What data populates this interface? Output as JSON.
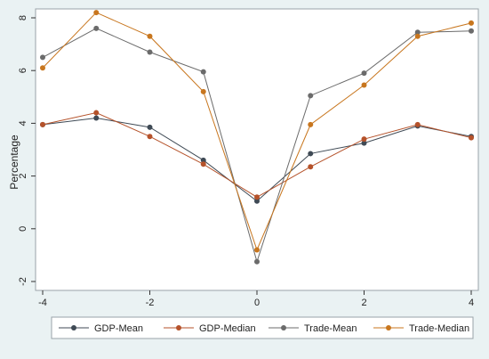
{
  "chart_data": {
    "type": "line",
    "title": "",
    "xlabel": "",
    "ylabel": "Percentage",
    "xlim": [
      -4,
      4
    ],
    "ylim": [
      -2,
      8
    ],
    "x_ticks": [
      -4,
      -2,
      0,
      2,
      4
    ],
    "y_ticks": [
      -2,
      0,
      2,
      4,
      6,
      8
    ],
    "grid": false,
    "legend_position": "bottom",
    "x": [
      -4,
      -3,
      -2,
      -1,
      0,
      1,
      2,
      3,
      4
    ],
    "series": [
      {
        "name": "GDP-Mean",
        "color": "#3f4a55",
        "values": [
          3.95,
          4.2,
          3.85,
          2.6,
          1.05,
          2.85,
          3.25,
          3.9,
          3.5
        ]
      },
      {
        "name": "GDP-Median",
        "color": "#b5522a",
        "values": [
          3.95,
          4.4,
          3.5,
          2.45,
          1.2,
          2.35,
          3.4,
          3.95,
          3.45
        ]
      },
      {
        "name": "Trade-Mean",
        "color": "#6b6b6b",
        "values": [
          6.5,
          7.6,
          6.7,
          5.95,
          -1.25,
          5.05,
          5.9,
          7.45,
          7.5
        ]
      },
      {
        "name": "Trade-Median",
        "color": "#c8761e",
        "values": [
          6.1,
          8.2,
          7.3,
          5.2,
          -0.8,
          3.95,
          5.45,
          7.3,
          7.8
        ]
      }
    ]
  }
}
